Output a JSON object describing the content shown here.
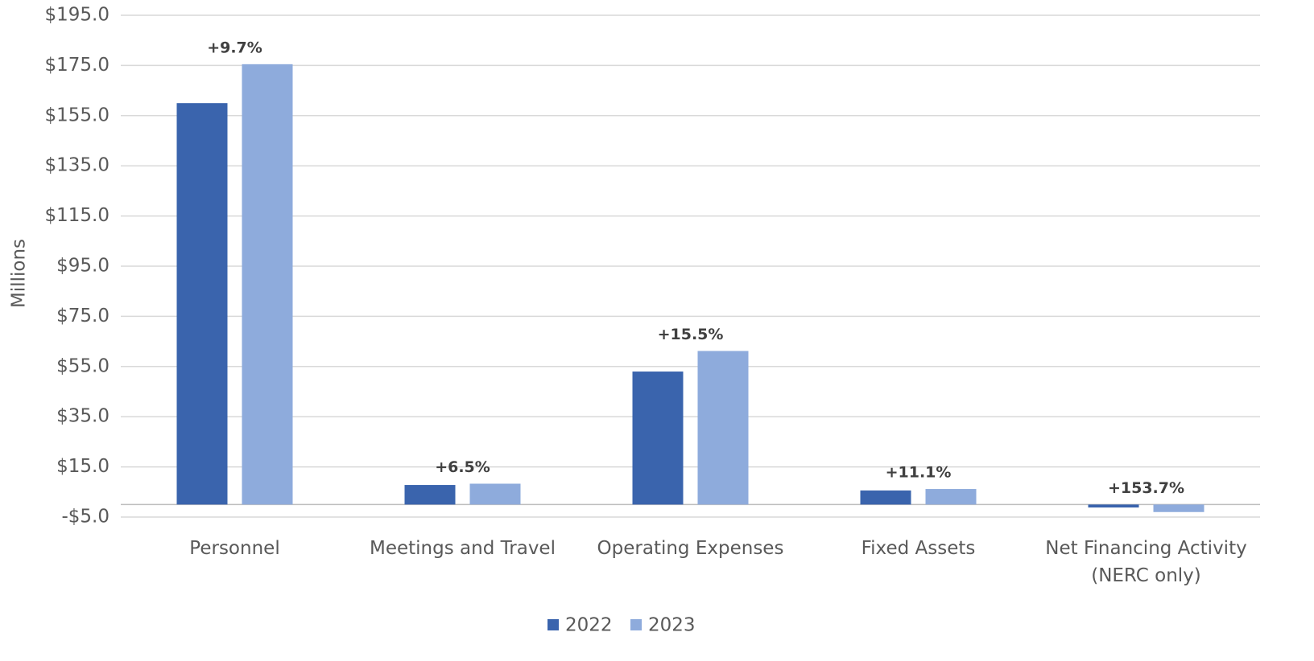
{
  "chart_data": {
    "type": "bar",
    "y_label": "Millions",
    "categories": [
      "Personnel",
      "Meetings and Travel",
      "Operating Expenses",
      "Fixed Assets",
      "Net Financing Activity (NERC only)"
    ],
    "series": [
      {
        "name": "2022",
        "color": "#3a64ad",
        "values": [
          160,
          7.8,
          53,
          5.6,
          -1.2
        ]
      },
      {
        "name": "2023",
        "color": "#8eabdc",
        "values": [
          175.5,
          8.3,
          61.2,
          6.2,
          -3.0
        ]
      }
    ],
    "annotations": [
      "+9.7%",
      "+6.5%",
      "+15.5%",
      "+11.1%",
      "+153.7%"
    ],
    "ylim": [
      -5,
      195
    ],
    "yticks": [
      {
        "value": -5,
        "label": "-$5.0"
      },
      {
        "value": 15,
        "label": "$15.0"
      },
      {
        "value": 35,
        "label": "$35.0"
      },
      {
        "value": 55,
        "label": "$55.0"
      },
      {
        "value": 75,
        "label": "$75.0"
      },
      {
        "value": 95,
        "label": "$95.0"
      },
      {
        "value": 115,
        "label": "$115.0"
      },
      {
        "value": 135,
        "label": "$135.0"
      },
      {
        "value": 155,
        "label": "$155.0"
      },
      {
        "value": 175,
        "label": "$175.0"
      },
      {
        "value": 195,
        "label": "$195.0"
      }
    ],
    "grid": true,
    "legend": "bottom"
  }
}
